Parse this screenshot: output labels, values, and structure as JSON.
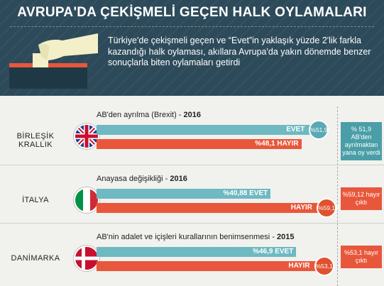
{
  "header": {
    "title": "AVRUPA'DA ÇEKİŞMELİ GEÇEN HALK OYLAMALARI",
    "intro": "Türkiye'de çekişmeli geçen ve “Evet”in yaklaşık yüzde 2'lik farkla kazandığı halk oylaması, akıllara Avrupa'da yakın dönemde benzer sonuçlarla biten oylamaları getirdi"
  },
  "colors": {
    "evet": "#6eb9c2",
    "hayir": "#e8573b",
    "header": "#2c4a5a"
  },
  "chart_data": {
    "type": "bar",
    "scale_max": 55,
    "sections": [
      {
        "country": "BİRLEŞİK KRALLIK",
        "flag": "uk-flag-icon",
        "subtitle_text": "AB'den ayrılma (Brexit) -",
        "year": "2016",
        "evet_value": 51.9,
        "evet_label": "EVET",
        "evet_pct": "%51,9",
        "hayir_value": 48.1,
        "hayir_label": "HAYIR",
        "hayir_pct": "%48,1",
        "result": "% 51,9 AB'den ayrılmaktan yana oy verdi",
        "winner": "evet"
      },
      {
        "country": "İTALYA",
        "flag": "italy-flag-icon",
        "subtitle_text": "Anayasa değişikliği -",
        "year": "2016",
        "evet_value": 40.88,
        "evet_label": "EVET",
        "evet_pct": "%40,88",
        "hayir_value": 59.12,
        "hayir_label": "HAYIR",
        "hayir_pct": "%59,12",
        "result": "%59,12 hayır çıktı",
        "winner": "hayir"
      },
      {
        "country": "DANİMARKA",
        "flag": "denmark-flag-icon",
        "subtitle_text": "AB'nin adalet ve içişleri kurallarının benimsenmesi -",
        "year": "2015",
        "evet_value": 46.9,
        "evet_label": "EVET",
        "evet_pct": "%46,9",
        "hayir_value": 53.1,
        "hayir_label": "HAYIR",
        "hayir_pct": "%53,1",
        "result": "%53,1 hayır çıktı",
        "winner": "hayir"
      }
    ]
  }
}
